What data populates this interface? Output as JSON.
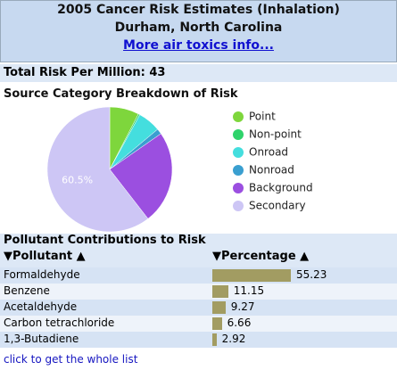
{
  "header": {
    "title": "2005 Cancer Risk Estimates (Inhalation)",
    "location": "Durham, North Carolina",
    "link": "More air toxics info..."
  },
  "total_risk": {
    "label": "Total Risk Per Million:",
    "value": 43
  },
  "chart_data": {
    "type": "pie",
    "title": "Source Category Breakdown of Risk",
    "categories": [
      "Point",
      "Non-point",
      "Onroad",
      "Nonroad",
      "Background",
      "Secondary"
    ],
    "values": [
      7.6,
      0.4,
      5.9,
      1.4,
      24.2,
      60.5
    ],
    "value_labels": [
      null,
      null,
      null,
      null,
      null,
      "60.5%"
    ],
    "colors": [
      "#7ed63c",
      "#2fd36b",
      "#44dede",
      "#3a9fd0",
      "#9b4fe0",
      "#cdc6f5"
    ]
  },
  "table": {
    "title": "Pollutant Contributions to Risk",
    "columns": [
      "Pollutant",
      "Percentage"
    ],
    "bar_color": "#a29c62",
    "rows": [
      {
        "name": "Formaldehyde",
        "value": 55.23
      },
      {
        "name": "Benzene",
        "value": 11.15
      },
      {
        "name": "Acetaldehyde",
        "value": 9.27
      },
      {
        "name": "Carbon tetrachloride",
        "value": 6.66
      },
      {
        "name": "1,3-Butadiene",
        "value": 2.92
      }
    ]
  },
  "footer_link": "click to get the whole list"
}
